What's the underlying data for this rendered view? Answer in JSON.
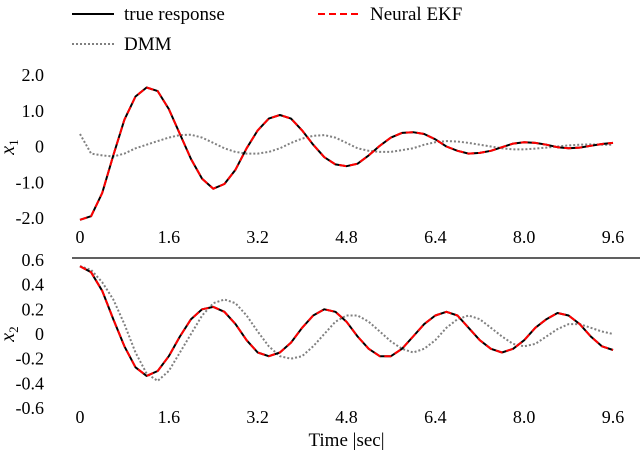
{
  "legend": [
    {
      "label": "true response",
      "color": "#000000",
      "dash": "solid"
    },
    {
      "label": "Neural EKF",
      "color": "#ff0000",
      "dash": "dashed"
    },
    {
      "label": "DMM",
      "color": "#808080",
      "dash": "dotted"
    }
  ],
  "chart_data": [
    {
      "type": "line",
      "title": "",
      "xlabel": "",
      "ylabel": "x",
      "ylabel_sub": "1",
      "xlim": [
        0,
        9.6
      ],
      "ylim": [
        -2.0,
        2.0
      ],
      "xticks": [
        "0",
        "1.6",
        "3.2",
        "4.8",
        "6.4",
        "8.0",
        "9.6"
      ],
      "yticks": [
        "2.0",
        "1.0",
        "0",
        "-1.0",
        "-2.0"
      ],
      "grid": false,
      "x": [
        0,
        0.2,
        0.4,
        0.6,
        0.8,
        1.0,
        1.2,
        1.4,
        1.6,
        1.8,
        2.0,
        2.2,
        2.4,
        2.6,
        2.8,
        3.0,
        3.2,
        3.4,
        3.6,
        3.8,
        4.0,
        4.2,
        4.4,
        4.6,
        4.8,
        5.0,
        5.2,
        5.4,
        5.6,
        5.8,
        6.0,
        6.2,
        6.4,
        6.6,
        6.8,
        7.0,
        7.2,
        7.4,
        7.6,
        7.8,
        8.0,
        8.2,
        8.4,
        8.6,
        8.8,
        9.0,
        9.2,
        9.4,
        9.6
      ],
      "series": [
        {
          "name": "true response",
          "values": [
            -2.05,
            -1.95,
            -1.3,
            -0.25,
            0.75,
            1.4,
            1.65,
            1.55,
            1.05,
            0.35,
            -0.35,
            -0.9,
            -1.18,
            -1.05,
            -0.65,
            -0.05,
            0.45,
            0.78,
            0.88,
            0.78,
            0.45,
            0.05,
            -0.3,
            -0.5,
            -0.55,
            -0.48,
            -0.25,
            0.02,
            0.25,
            0.38,
            0.4,
            0.35,
            0.2,
            0.0,
            -0.12,
            -0.2,
            -0.18,
            -0.12,
            -0.02,
            0.08,
            0.12,
            0.1,
            0.05,
            -0.02,
            -0.05,
            -0.03,
            0.02,
            0.07,
            0.1
          ]
        },
        {
          "name": "Neural EKF",
          "values": [
            -2.05,
            -1.95,
            -1.3,
            -0.25,
            0.75,
            1.4,
            1.65,
            1.55,
            1.05,
            0.35,
            -0.35,
            -0.9,
            -1.18,
            -1.05,
            -0.65,
            -0.05,
            0.45,
            0.78,
            0.88,
            0.78,
            0.45,
            0.05,
            -0.3,
            -0.5,
            -0.55,
            -0.48,
            -0.25,
            0.02,
            0.25,
            0.38,
            0.4,
            0.35,
            0.2,
            0.0,
            -0.12,
            -0.2,
            -0.18,
            -0.12,
            -0.02,
            0.08,
            0.12,
            0.1,
            0.05,
            -0.02,
            -0.05,
            -0.03,
            0.02,
            0.07,
            0.1
          ]
        },
        {
          "name": "DMM",
          "values": [
            0.35,
            -0.2,
            -0.25,
            -0.28,
            -0.2,
            -0.05,
            0.05,
            0.15,
            0.25,
            0.32,
            0.33,
            0.25,
            0.1,
            -0.05,
            -0.15,
            -0.2,
            -0.2,
            -0.15,
            -0.05,
            0.1,
            0.22,
            0.3,
            0.32,
            0.25,
            0.1,
            -0.05,
            -0.12,
            -0.15,
            -0.15,
            -0.1,
            -0.05,
            0.05,
            0.12,
            0.15,
            0.14,
            0.1,
            0.05,
            0.0,
            -0.05,
            -0.08,
            -0.08,
            -0.06,
            -0.03,
            0.0,
            0.03,
            0.05,
            0.06,
            0.05,
            0.05
          ]
        }
      ]
    },
    {
      "type": "line",
      "title": "",
      "xlabel": "Time |sec|",
      "ylabel": "x",
      "ylabel_sub": "2",
      "xlim": [
        0,
        9.6
      ],
      "ylim": [
        -0.6,
        0.6
      ],
      "xticks": [
        "0",
        "1.6",
        "3.2",
        "4.8",
        "6.4",
        "8.0",
        "9.6"
      ],
      "yticks": [
        "0.6",
        "0.4",
        "0.2",
        "0",
        "-0.2",
        "-0.4",
        "-0.6"
      ],
      "grid": false,
      "x": [
        0,
        0.2,
        0.4,
        0.6,
        0.8,
        1.0,
        1.2,
        1.4,
        1.6,
        1.8,
        2.0,
        2.2,
        2.4,
        2.6,
        2.8,
        3.0,
        3.2,
        3.4,
        3.6,
        3.8,
        4.0,
        4.2,
        4.4,
        4.6,
        4.8,
        5.0,
        5.2,
        5.4,
        5.6,
        5.8,
        6.0,
        6.2,
        6.4,
        6.6,
        6.8,
        7.0,
        7.2,
        7.4,
        7.6,
        7.8,
        8.0,
        8.2,
        8.4,
        8.6,
        8.8,
        9.0,
        9.2,
        9.4,
        9.6
      ],
      "series": [
        {
          "name": "true response",
          "values": [
            0.55,
            0.5,
            0.35,
            0.12,
            -0.1,
            -0.27,
            -0.34,
            -0.3,
            -0.18,
            -0.02,
            0.12,
            0.2,
            0.22,
            0.18,
            0.08,
            -0.05,
            -0.15,
            -0.18,
            -0.15,
            -0.07,
            0.05,
            0.15,
            0.2,
            0.18,
            0.1,
            -0.02,
            -0.12,
            -0.18,
            -0.18,
            -0.12,
            -0.02,
            0.08,
            0.15,
            0.18,
            0.15,
            0.05,
            -0.05,
            -0.12,
            -0.15,
            -0.12,
            -0.05,
            0.05,
            0.12,
            0.17,
            0.15,
            0.08,
            -0.02,
            -0.1,
            -0.13
          ]
        },
        {
          "name": "Neural EKF",
          "values": [
            0.55,
            0.5,
            0.35,
            0.12,
            -0.1,
            -0.27,
            -0.34,
            -0.3,
            -0.18,
            -0.02,
            0.12,
            0.2,
            0.22,
            0.18,
            0.08,
            -0.05,
            -0.15,
            -0.18,
            -0.15,
            -0.07,
            0.05,
            0.15,
            0.2,
            0.18,
            0.1,
            -0.02,
            -0.12,
            -0.18,
            -0.18,
            -0.12,
            -0.02,
            0.08,
            0.15,
            0.18,
            0.15,
            0.05,
            -0.05,
            -0.12,
            -0.15,
            -0.12,
            -0.05,
            0.05,
            0.12,
            0.17,
            0.15,
            0.08,
            -0.02,
            -0.1,
            -0.13
          ]
        },
        {
          "name": "DMM",
          "values": [
            0.55,
            0.52,
            0.42,
            0.28,
            0.08,
            -0.15,
            -0.32,
            -0.38,
            -0.3,
            -0.15,
            0.0,
            0.15,
            0.25,
            0.28,
            0.25,
            0.15,
            0.02,
            -0.1,
            -0.18,
            -0.2,
            -0.18,
            -0.1,
            0.0,
            0.1,
            0.15,
            0.15,
            0.1,
            0.02,
            -0.06,
            -0.12,
            -0.15,
            -0.12,
            -0.05,
            0.05,
            0.12,
            0.15,
            0.12,
            0.05,
            -0.02,
            -0.08,
            -0.1,
            -0.08,
            -0.02,
            0.04,
            0.08,
            0.08,
            0.05,
            0.02,
            0.0
          ]
        }
      ]
    }
  ]
}
